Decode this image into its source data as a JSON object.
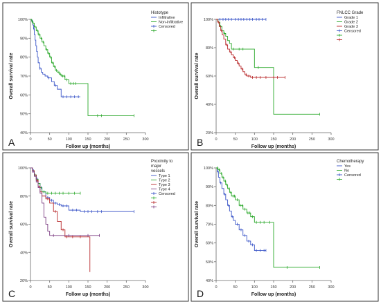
{
  "chart_data": [
    {
      "panel_label": "A",
      "type": "line",
      "xlabel": "Follow up (months)",
      "ylabel": "Overall survival rate",
      "xlim": [
        0,
        300
      ],
      "ylim": [
        40,
        100
      ],
      "xticks": [
        "0",
        "50",
        "100",
        "150",
        "200",
        "250",
        "300"
      ],
      "yticks": [
        "40%",
        "50%",
        "60%",
        "70%",
        "80%",
        "90%",
        "100%"
      ],
      "legend": {
        "title": "Histotype",
        "placement": "top-right",
        "entries": [
          "Infiltrative",
          "Non-infiltrative",
          "Censored"
        ]
      },
      "series": [
        {
          "name": "Infiltrative",
          "color": "#3a55c8",
          "x": [
            0,
            3,
            6,
            8,
            10,
            12,
            14,
            16,
            18,
            20,
            24,
            28,
            32,
            38,
            45,
            55,
            62,
            70,
            80,
            90,
            100,
            130
          ],
          "values": [
            100,
            99,
            97,
            95,
            92,
            89,
            86,
            83,
            80,
            77,
            74,
            72,
            71,
            70,
            69,
            67,
            65,
            63,
            59,
            59,
            59,
            59
          ],
          "censored_x": [
            5,
            9,
            25,
            48,
            65,
            85,
            95,
            105,
            115,
            125
          ]
        },
        {
          "name": "Non-infiltrative",
          "color": "#2aa82a",
          "x": [
            0,
            3,
            6,
            10,
            15,
            20,
            25,
            30,
            35,
            40,
            45,
            50,
            55,
            60,
            65,
            70,
            75,
            80,
            90,
            100,
            120,
            150,
            270
          ],
          "values": [
            100,
            99,
            98,
            96,
            94,
            92,
            90,
            88,
            86,
            84,
            82,
            80,
            77,
            75,
            73,
            72,
            71,
            70,
            68,
            66,
            66,
            49,
            49
          ],
          "censored_x": [
            4,
            7,
            12,
            18,
            22,
            28,
            33,
            42,
            47,
            52,
            58,
            63,
            68,
            74,
            78,
            84,
            88,
            95,
            105,
            112,
            118,
            175,
            185,
            270
          ]
        }
      ]
    },
    {
      "panel_label": "B",
      "type": "line",
      "xlabel": "Follow up (months)",
      "ylabel": "Overall survival rate",
      "xlim": [
        0,
        300
      ],
      "ylim": [
        20,
        100
      ],
      "xticks": [
        "0",
        "50",
        "100",
        "150",
        "200",
        "250",
        "300"
      ],
      "yticks": [
        "20%",
        "40%",
        "60%",
        "80%",
        "100%"
      ],
      "legend": {
        "title": "FNLCC Grade",
        "placement": "top-right",
        "entries": [
          "Grade 1",
          "Grade 2",
          "Grade 3",
          "Censored"
        ]
      },
      "series": [
        {
          "name": "Grade 1",
          "color": "#3a55c8",
          "x": [
            0,
            130
          ],
          "values": [
            100,
            100
          ],
          "censored_x": [
            10,
            18,
            25,
            32,
            40,
            50,
            58,
            65,
            72,
            80,
            88,
            95,
            105,
            112,
            120,
            130
          ]
        },
        {
          "name": "Grade 2",
          "color": "#2aa82a",
          "x": [
            0,
            5,
            10,
            15,
            20,
            25,
            30,
            35,
            40,
            50,
            75,
            100,
            150,
            270
          ],
          "values": [
            100,
            98,
            95,
            92,
            90,
            88,
            85,
            83,
            79,
            79,
            79,
            66,
            33,
            33
          ],
          "censored_x": [
            12,
            22,
            45,
            60,
            70,
            110,
            270
          ]
        },
        {
          "name": "Grade 3",
          "color": "#b8282a",
          "x": [
            0,
            4,
            8,
            12,
            16,
            20,
            25,
            30,
            35,
            40,
            45,
            50,
            55,
            60,
            65,
            70,
            75,
            80,
            90,
            120,
            180
          ],
          "values": [
            100,
            98,
            95,
            92,
            89,
            86,
            82,
            79,
            77,
            75,
            73,
            71,
            69,
            67,
            65,
            63,
            61,
            60,
            59,
            59,
            59
          ],
          "censored_x": [
            6,
            14,
            28,
            38,
            48,
            58,
            68,
            78,
            85,
            95,
            105,
            115,
            130,
            150,
            160,
            180
          ]
        }
      ]
    },
    {
      "panel_label": "C",
      "type": "line",
      "xlabel": "Follow up (months)",
      "ylabel": "Overall survival rate",
      "xlim": [
        0,
        300
      ],
      "ylim": [
        20,
        100
      ],
      "xticks": [
        "0",
        "50",
        "100",
        "150",
        "200",
        "250",
        "300"
      ],
      "yticks": [
        "20%",
        "40%",
        "60%",
        "80%",
        "100%"
      ],
      "legend": {
        "title": "Proximity to major vessels",
        "placement": "top-right",
        "entries": [
          "Type 1",
          "Type 2",
          "Type 3",
          "Type 4",
          "Censored"
        ]
      },
      "series": [
        {
          "name": "Type 1",
          "color": "#3a55c8",
          "x": [
            0,
            5,
            10,
            15,
            20,
            25,
            30,
            40,
            50,
            60,
            70,
            80,
            100,
            130,
            270
          ],
          "values": [
            100,
            98,
            95,
            92,
            89,
            86,
            83,
            79,
            77,
            75,
            74,
            73,
            70,
            69,
            69
          ],
          "censored_x": [
            8,
            18,
            28,
            35,
            45,
            55,
            65,
            75,
            85,
            95,
            110,
            120,
            140,
            150,
            160,
            175,
            185,
            270
          ]
        },
        {
          "name": "Type 2",
          "color": "#2aa82a",
          "x": [
            0,
            5,
            10,
            15,
            20,
            25,
            30,
            40,
            60,
            130
          ],
          "values": [
            100,
            98,
            95,
            92,
            89,
            86,
            83,
            82,
            82,
            82
          ],
          "censored_x": [
            12,
            35,
            45,
            55,
            65,
            75,
            85,
            100,
            115,
            130
          ]
        },
        {
          "name": "Type 3",
          "color": "#b8282a",
          "x": [
            0,
            5,
            10,
            15,
            20,
            25,
            30,
            40,
            50,
            60,
            70,
            80,
            90,
            150,
            155
          ],
          "values": [
            100,
            98,
            95,
            91,
            87,
            83,
            80,
            78,
            75,
            69,
            62,
            56,
            51,
            51,
            26
          ],
          "censored_x": [
            18,
            45,
            65,
            85,
            95,
            110,
            130
          ]
        },
        {
          "name": "Type 4",
          "color": "#7a3a80",
          "x": [
            0,
            5,
            10,
            15,
            20,
            25,
            30,
            35,
            40,
            45,
            50,
            65,
            80,
            180
          ],
          "values": [
            100,
            97,
            94,
            90,
            86,
            82,
            75,
            65,
            60,
            55,
            52,
            52,
            52,
            52
          ],
          "censored_x": [
            60,
            100,
            150,
            180
          ]
        }
      ]
    },
    {
      "panel_label": "D",
      "type": "line",
      "xlabel": "Follow up (months)",
      "ylabel": "Overall survival rate",
      "xlim": [
        0,
        300
      ],
      "ylim": [
        40,
        100
      ],
      "xticks": [
        "0",
        "50",
        "100",
        "150",
        "200",
        "250",
        "300"
      ],
      "yticks": [
        "40%",
        "50%",
        "60%",
        "70%",
        "80%",
        "90%",
        "100%"
      ],
      "legend": {
        "title": "Chemotherapy",
        "placement": "top-right",
        "entries": [
          "Yes",
          "No",
          "Censored"
        ]
      },
      "series": [
        {
          "name": "Yes",
          "color": "#3a55c8",
          "x": [
            0,
            3,
            6,
            10,
            15,
            20,
            25,
            30,
            35,
            40,
            45,
            50,
            60,
            70,
            80,
            90,
            100,
            130
          ],
          "values": [
            100,
            98,
            95,
            92,
            89,
            86,
            83,
            80,
            77,
            74,
            72,
            70,
            67,
            64,
            61,
            59,
            56,
            56
          ],
          "censored_x": [
            5,
            12,
            22,
            32,
            42,
            55,
            65,
            75,
            85,
            95,
            105,
            115,
            125,
            130
          ]
        },
        {
          "name": "No",
          "color": "#2aa82a",
          "x": [
            0,
            5,
            10,
            15,
            20,
            25,
            30,
            35,
            40,
            50,
            60,
            70,
            80,
            90,
            100,
            150,
            270
          ],
          "values": [
            100,
            99,
            97,
            95,
            93,
            91,
            89,
            87,
            85,
            83,
            80,
            78,
            76,
            74,
            71,
            47,
            47
          ],
          "censored_x": [
            3,
            8,
            14,
            18,
            24,
            28,
            34,
            38,
            44,
            48,
            55,
            63,
            68,
            75,
            83,
            88,
            95,
            105,
            115,
            125,
            140,
            185,
            270
          ]
        }
      ]
    }
  ]
}
